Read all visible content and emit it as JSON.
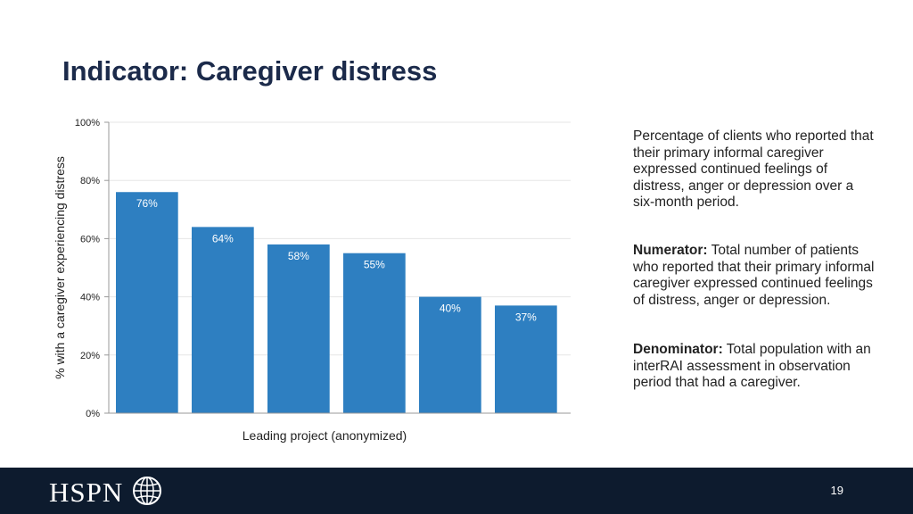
{
  "slide": {
    "title": "Indicator: Caregiver distress",
    "page_number": "19"
  },
  "description": {
    "definition": "Percentage of clients  who reported that their primary informal caregiver expressed continued feelings of distress, anger or depression over a six-month period.",
    "numerator_label": "Numerator:",
    "numerator_text": " Total number of patients who reported that their primary informal caregiver expressed continued feelings of distress, anger or depression.",
    "denominator_label": "Denominator:",
    "denominator_text": " Total population with an interRAI assessment in observation period that had a caregiver."
  },
  "footer": {
    "logo_text": "HSPN",
    "logo_icon": "globe-icon",
    "background_color": "#0d1b2e"
  },
  "chart_data": {
    "type": "bar",
    "categories": [
      "",
      "",
      "",
      "",
      "",
      ""
    ],
    "values": [
      76,
      64,
      58,
      55,
      40,
      37
    ],
    "data_labels": [
      "76%",
      "64%",
      "58%",
      "55%",
      "40%",
      "37%"
    ],
    "title": "",
    "xlabel": "Leading project (anonymized)",
    "ylabel": "% with a caregiver experiencing distress",
    "ylim": [
      0,
      100
    ],
    "yticks": [
      0,
      20,
      40,
      60,
      80,
      100
    ],
    "ytick_labels": [
      "0%",
      "20%",
      "40%",
      "60%",
      "80%",
      "100%"
    ],
    "grid": true,
    "legend": "none",
    "bar_color": "#2e7fc1",
    "label_color": "#ffffff"
  }
}
